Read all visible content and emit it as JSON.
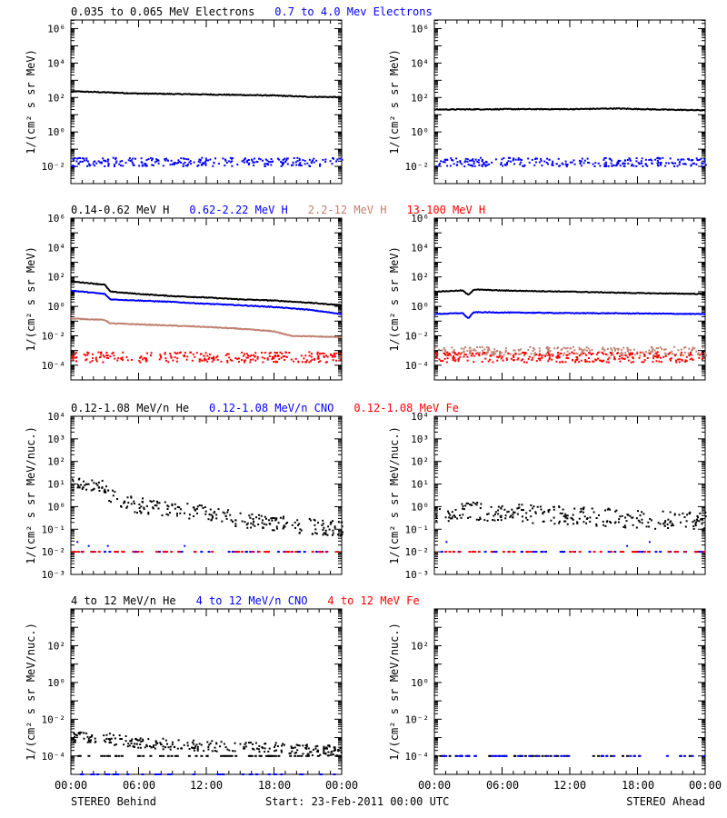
{
  "figure": {
    "footer": {
      "left": "STEREO Behind",
      "center": "Start: 23-Feb-2011 00:00 UTC",
      "right": "STEREO Ahead"
    },
    "x_ticks": [
      "00:00",
      "06:00",
      "12:00",
      "18:00",
      "00:00"
    ]
  },
  "chart_data": [
    {
      "type": "scatter",
      "panel": "electrons",
      "legend": [
        {
          "name": "0.035 to 0.065 MeV Electrons",
          "color": "#000000"
        },
        {
          "name": "0.7 to 4.0 Mev Electrons",
          "color": "#0000ff"
        }
      ],
      "ylabel": "1/(cm² s sr MeV)",
      "y_scale": "log",
      "ylim_exp": [
        -3,
        6.5
      ],
      "y_tick_exponents": [
        -2,
        0,
        2,
        4,
        6
      ],
      "behind": {
        "series": [
          {
            "name": "0.035 to 0.065 MeV Electrons",
            "color": "#000000",
            "style": "line",
            "points": [
              [
                0,
                230
              ],
              [
                3,
                200
              ],
              [
                6,
                170
              ],
              [
                9,
                160
              ],
              [
                12,
                150
              ],
              [
                15,
                140
              ],
              [
                18,
                130
              ],
              [
                21,
                110
              ],
              [
                24,
                105
              ]
            ]
          },
          {
            "name": "0.7 to 4.0 Mev Electrons",
            "color": "#0000ff",
            "style": "dots",
            "level": 0.02,
            "spread": 0.25
          }
        ]
      },
      "ahead": {
        "series": [
          {
            "name": "0.035 to 0.065 MeV Electrons",
            "color": "#000000",
            "style": "line",
            "points": [
              [
                0,
                20
              ],
              [
                6,
                21
              ],
              [
                12,
                21
              ],
              [
                16,
                23
              ],
              [
                20,
                20
              ],
              [
                24,
                18
              ]
            ]
          },
          {
            "name": "0.7 to 4.0 Mev Electrons",
            "color": "#0000ff",
            "style": "dots",
            "level": 0.02,
            "spread": 0.25
          }
        ]
      }
    },
    {
      "type": "scatter",
      "panel": "protons",
      "legend": [
        {
          "name": "0.14-0.62 MeV H",
          "color": "#000000"
        },
        {
          "name": "0.62-2.22 MeV H",
          "color": "#0000ff"
        },
        {
          "name": "2.2-12 MeV H",
          "color": "#c08070"
        },
        {
          "name": "13-100 MeV H",
          "color": "#ff0000"
        }
      ],
      "ylabel": "1/(cm² s sr MeV)",
      "y_scale": "log",
      "ylim_exp": [
        -5,
        6
      ],
      "y_tick_exponents": [
        -4,
        -2,
        0,
        2,
        4,
        6
      ],
      "behind": {
        "series": [
          {
            "name": "0.14-0.62 MeV H",
            "color": "#000000",
            "style": "line",
            "points": [
              [
                0,
                50
              ],
              [
                3,
                30
              ],
              [
                3.5,
                10
              ],
              [
                6,
                7
              ],
              [
                9,
                5
              ],
              [
                12,
                4
              ],
              [
                15,
                3
              ],
              [
                18,
                2.5
              ],
              [
                21,
                1.8
              ],
              [
                24,
                1.2
              ]
            ]
          },
          {
            "name": "0.62-2.22 MeV H",
            "color": "#0000ff",
            "style": "line",
            "points": [
              [
                0,
                12
              ],
              [
                3,
                7
              ],
              [
                3.5,
                3
              ],
              [
                6,
                2.5
              ],
              [
                9,
                2
              ],
              [
                12,
                1.5
              ],
              [
                15,
                1.2
              ],
              [
                18,
                0.9
              ],
              [
                21,
                0.6
              ],
              [
                24,
                0.3
              ]
            ]
          },
          {
            "name": "2.2-12 MeV H",
            "color": "#c08070",
            "style": "line",
            "points": [
              [
                0,
                0.15
              ],
              [
                3,
                0.12
              ],
              [
                3.5,
                0.07
              ],
              [
                6,
                0.06
              ],
              [
                12,
                0.04
              ],
              [
                15,
                0.03
              ],
              [
                18,
                0.02
              ],
              [
                19.5,
                0.01
              ],
              [
                24,
                0.008
              ]
            ]
          },
          {
            "name": "13-100 MeV H",
            "color": "#ff0000",
            "style": "dots",
            "level": 0.0004,
            "spread": 0.35
          }
        ]
      },
      "ahead": {
        "series": [
          {
            "name": "0.14-0.62 MeV H",
            "color": "#000000",
            "style": "line",
            "points": [
              [
                0,
                10
              ],
              [
                2.5,
                12
              ],
              [
                3,
                6
              ],
              [
                3.5,
                14
              ],
              [
                6,
                12
              ],
              [
                12,
                10
              ],
              [
                18,
                8
              ],
              [
                24,
                7
              ]
            ]
          },
          {
            "name": "0.62-2.22 MeV H",
            "color": "#0000ff",
            "style": "line",
            "points": [
              [
                0,
                0.3
              ],
              [
                2.5,
                0.35
              ],
              [
                3,
                0.15
              ],
              [
                3.5,
                0.4
              ],
              [
                12,
                0.35
              ],
              [
                18,
                0.33
              ],
              [
                24,
                0.3
              ]
            ]
          },
          {
            "name": "2.2-12 MeV H",
            "color": "#c08070",
            "style": "dots",
            "level": 0.001,
            "spread": 0.3
          },
          {
            "name": "13-100 MeV H",
            "color": "#ff0000",
            "style": "dots",
            "level": 0.0004,
            "spread": 0.35
          }
        ]
      }
    },
    {
      "type": "scatter",
      "panel": "low-energy-ions",
      "legend": [
        {
          "name": "0.12-1.08 MeV/n He",
          "color": "#000000"
        },
        {
          "name": "0.12-1.08 MeV/n CNO",
          "color": "#0000ff"
        },
        {
          "name": "0.12-1.08 MeV Fe",
          "color": "#ff0000"
        }
      ],
      "ylabel": "1/(cm² s sr MeV/nuc.)",
      "y_scale": "log",
      "ylim_exp": [
        -3,
        4
      ],
      "y_tick_exponents": [
        -3,
        -2,
        -1,
        0,
        1,
        2,
        3,
        4
      ],
      "behind": {
        "series": [
          {
            "name": "0.12-1.08 MeV/n He",
            "color": "#000000",
            "style": "dots",
            "points": [
              [
                0,
                8
              ],
              [
                1,
                10
              ],
              [
                2,
                11
              ],
              [
                3,
                6
              ],
              [
                4,
                2
              ],
              [
                6,
                1.2
              ],
              [
                9,
                0.9
              ],
              [
                12,
                0.5
              ],
              [
                15,
                0.3
              ],
              [
                18,
                0.2
              ],
              [
                21,
                0.15
              ],
              [
                24,
                0.12
              ]
            ],
            "spread": 0.35
          },
          {
            "name": "0.12-1.08 MeV/n CNO",
            "color": "#0000ff",
            "style": "sparse",
            "level": 0.01,
            "extra": [
              [
                0.5,
                0.03
              ],
              [
                1.5,
                0.02
              ],
              [
                3.2,
                0.02
              ],
              [
                10,
                0.02
              ]
            ]
          },
          {
            "name": "0.12-1.08 MeV Fe",
            "color": "#ff0000",
            "style": "sparse",
            "level": 0.01
          }
        ]
      },
      "ahead": {
        "series": [
          {
            "name": "0.12-1.08 MeV/n He",
            "color": "#000000",
            "style": "dots",
            "points": [
              [
                0,
                0.4
              ],
              [
                3,
                0.7
              ],
              [
                6,
                0.6
              ],
              [
                9,
                0.5
              ],
              [
                12,
                0.45
              ],
              [
                18,
                0.3
              ],
              [
                24,
                0.25
              ]
            ],
            "spread": 0.4
          },
          {
            "name": "0.12-1.08 MeV/n CNO",
            "color": "#0000ff",
            "style": "sparse",
            "level": 0.01,
            "extra": [
              [
                1,
                0.03
              ],
              [
                17,
                0.02
              ],
              [
                19,
                0.03
              ]
            ]
          },
          {
            "name": "0.12-1.08 MeV Fe",
            "color": "#ff0000",
            "style": "sparse",
            "level": 0.01
          }
        ]
      }
    },
    {
      "type": "scatter",
      "panel": "high-energy-ions",
      "legend": [
        {
          "name": "4 to 12 MeV/n He",
          "color": "#000000"
        },
        {
          "name": "4 to 12 MeV/n CNO",
          "color": "#0000ff"
        },
        {
          "name": "4 to 12 MeV Fe",
          "color": "#ff0000"
        }
      ],
      "ylabel": "1/(cm² s sr MeV/nuc.)",
      "y_scale": "log",
      "ylim_exp": [
        -5,
        4
      ],
      "y_tick_exponents": [
        -4,
        -2,
        0,
        2
      ],
      "behind": {
        "series": [
          {
            "name": "4 to 12 MeV/n He",
            "color": "#000000",
            "style": "dots",
            "points": [
              [
                0,
                0.0012
              ],
              [
                3,
                0.001
              ],
              [
                6,
                0.0006
              ],
              [
                12,
                0.0004
              ],
              [
                18,
                0.0003
              ],
              [
                24,
                0.0002
              ]
            ],
            "spread": 0.3
          },
          {
            "name": "4 to 12 MeV/n He",
            "color": "#000000",
            "style": "floor",
            "level": 0.0001
          },
          {
            "name": "4 to 12 MeV/n CNO",
            "color": "#0000ff",
            "style": "sparse",
            "level": 1e-05
          }
        ]
      },
      "ahead": {
        "series": [
          {
            "name": "4 to 12 MeV/n He",
            "color": "#000000",
            "style": "sparse",
            "level": 0.0001
          },
          {
            "name": "4 to 12 MeV/n CNO",
            "color": "#0000ff",
            "style": "sparse",
            "level": 0.0001
          }
        ]
      }
    }
  ]
}
